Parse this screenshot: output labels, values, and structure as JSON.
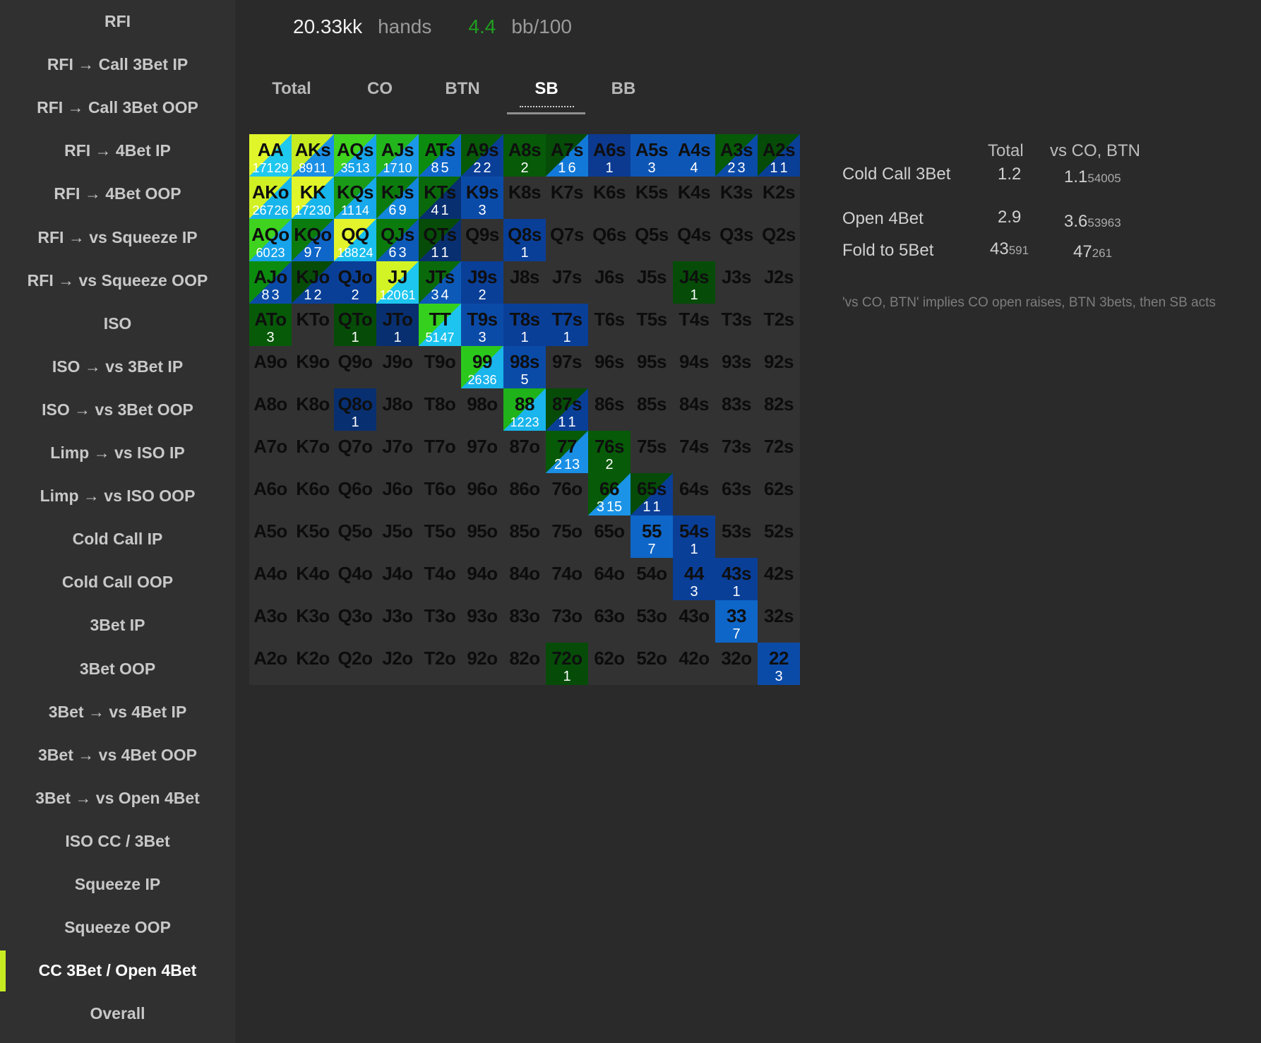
{
  "sidebar": {
    "items": [
      "RFI",
      "RFI → Call 3Bet IP",
      "RFI → Call 3Bet OOP",
      "RFI → 4Bet IP",
      "RFI → 4Bet OOP",
      "RFI → vs Squeeze IP",
      "RFI → vs Squeeze OOP",
      "ISO",
      "ISO → vs 3Bet IP",
      "ISO → vs 3Bet OOP",
      "Limp → vs ISO IP",
      "Limp → vs ISO OOP",
      "Cold Call IP",
      "Cold Call OOP",
      "3Bet IP",
      "3Bet OOP",
      "3Bet → vs 4Bet IP",
      "3Bet → vs 4Bet OOP",
      "3Bet → vs Open 4Bet",
      "ISO CC / 3Bet",
      "Squeeze IP",
      "Squeeze OOP",
      "CC 3Bet / Open 4Bet",
      "Overall"
    ],
    "active_index": 22,
    "accent_color": "#c6ec21"
  },
  "stats": {
    "hands_value": "20.33kk",
    "hands_label": "hands",
    "winrate_value": "4.4",
    "winrate_label": "bb/100",
    "winrate_color": "#1fa01f"
  },
  "tabs": {
    "items": [
      "Total",
      "CO",
      "BTN",
      "SB",
      "BB"
    ],
    "active_index": 3
  },
  "grid": {
    "cells": [
      [
        "AA",
        "171",
        "29",
        "#e0f52a",
        "#1fc8ee"
      ],
      [
        "AKs",
        "89",
        "11",
        "#c6ec21",
        "#1a8fe6"
      ],
      [
        "AQs",
        "35",
        "13",
        "#41d41f",
        "#17a3ea"
      ],
      [
        "AJs",
        "17",
        "10",
        "#22b51c",
        "#1c98e8"
      ],
      [
        "ATs",
        "8",
        "5",
        "#0c8c0f",
        "#0e66c8"
      ],
      [
        "A9s",
        "2",
        "2",
        "#075a08",
        "#0a3f98"
      ],
      [
        "A8s",
        "2",
        "",
        "#075a08",
        ""
      ],
      [
        "A7s",
        "1",
        "6",
        "#064c08",
        "#1379d9"
      ],
      [
        "A6s",
        "1",
        "",
        "#0b3a90",
        ""
      ],
      [
        "A5s",
        "3",
        "",
        "#0e56b6",
        ""
      ],
      [
        "A4s",
        "4",
        "",
        "#0e56b6",
        ""
      ],
      [
        "A3s",
        "2",
        "3",
        "#075a08",
        "#0b4ba8"
      ],
      [
        "A2s",
        "1",
        "1",
        "#064c08",
        "#0a3f98"
      ],
      [
        "AKo",
        "267",
        "26",
        "#d0f024",
        "#16b5ec"
      ],
      [
        "KK",
        "172",
        "30",
        "#e0f52a",
        "#16b5ec"
      ],
      [
        "KQs",
        "11",
        "14",
        "#1a9a17",
        "#17a9eb"
      ],
      [
        "KJs",
        "6",
        "9",
        "#0c7b0e",
        "#1386de"
      ],
      [
        "KTs",
        "4",
        "1",
        "#0a6a0b",
        "#082f70"
      ],
      [
        "K9s",
        "3",
        "",
        "#0b4ba8",
        ""
      ],
      [
        "K8s",
        "",
        "",
        "",
        ""
      ],
      [
        "K7s",
        "",
        "",
        "",
        ""
      ],
      [
        "K6s",
        "",
        "",
        "",
        ""
      ],
      [
        "K5s",
        "",
        "",
        "",
        ""
      ],
      [
        "K4s",
        "",
        "",
        "",
        ""
      ],
      [
        "K3s",
        "",
        "",
        "",
        ""
      ],
      [
        "K2s",
        "",
        "",
        "",
        ""
      ],
      [
        "AQo",
        "60",
        "23",
        "#3fd21f",
        "#17a3ea"
      ],
      [
        "KQo",
        "9",
        "7",
        "#0c7b0e",
        "#0e66c8"
      ],
      [
        "QQ",
        "188",
        "24",
        "#e4f42c",
        "#19bdee"
      ],
      [
        "QJs",
        "6",
        "3",
        "#0c7b0e",
        "#0d59b8"
      ],
      [
        "QTs",
        "1",
        "1",
        "#064c08",
        "#082f70"
      ],
      [
        "Q9s",
        "",
        "",
        "",
        ""
      ],
      [
        "Q8s",
        "1",
        "",
        "#0a3f98",
        ""
      ],
      [
        "Q7s",
        "",
        "",
        "",
        ""
      ],
      [
        "Q6s",
        "",
        "",
        "",
        ""
      ],
      [
        "Q5s",
        "",
        "",
        "",
        ""
      ],
      [
        "Q4s",
        "",
        "",
        "",
        ""
      ],
      [
        "Q3s",
        "",
        "",
        "",
        ""
      ],
      [
        "Q2s",
        "",
        "",
        "",
        ""
      ],
      [
        "AJo",
        "8",
        "3",
        "#0c8c0f",
        "#0b4ba8"
      ],
      [
        "KJo",
        "1",
        "2",
        "#064c08",
        "#0a3f98"
      ],
      [
        "QJo",
        "2",
        "",
        "#0a3f98",
        ""
      ],
      [
        "JJ",
        "120",
        "61",
        "#d2f424",
        "#1dc6ef"
      ],
      [
        "JTs",
        "3",
        "4",
        "#0a6a0b",
        "#0d59b8"
      ],
      [
        "J9s",
        "2",
        "",
        "#0a3f98",
        ""
      ],
      [
        "J8s",
        "",
        "",
        "",
        ""
      ],
      [
        "J7s",
        "",
        "",
        "",
        ""
      ],
      [
        "J6s",
        "",
        "",
        "",
        ""
      ],
      [
        "J5s",
        "",
        "",
        "",
        ""
      ],
      [
        "J4s",
        "1",
        "",
        "#064c08",
        ""
      ],
      [
        "J3s",
        "",
        "",
        "",
        ""
      ],
      [
        "J2s",
        "",
        "",
        "",
        ""
      ],
      [
        "ATo",
        "3",
        "",
        "#075a08",
        ""
      ],
      [
        "KTo",
        "",
        "",
        "",
        ""
      ],
      [
        "QTo",
        "1",
        "",
        "#064c08",
        ""
      ],
      [
        "JTo",
        "1",
        "",
        "#082f70",
        ""
      ],
      [
        "TT",
        "51",
        "47",
        "#35d01e",
        "#1cc4ef"
      ],
      [
        "T9s",
        "3",
        "",
        "#0b4ba8",
        ""
      ],
      [
        "T8s",
        "1",
        "",
        "#0a3f98",
        ""
      ],
      [
        "T7s",
        "1",
        "",
        "#0a3f98",
        ""
      ],
      [
        "T6s",
        "",
        "",
        "",
        ""
      ],
      [
        "T5s",
        "",
        "",
        "",
        ""
      ],
      [
        "T4s",
        "",
        "",
        "",
        ""
      ],
      [
        "T3s",
        "",
        "",
        "",
        ""
      ],
      [
        "T2s",
        "",
        "",
        "",
        ""
      ],
      [
        "A9o",
        "",
        "",
        "",
        ""
      ],
      [
        "K9o",
        "",
        "",
        "",
        ""
      ],
      [
        "Q9o",
        "",
        "",
        "",
        ""
      ],
      [
        "J9o",
        "",
        "",
        "",
        ""
      ],
      [
        "T9o",
        "",
        "",
        "",
        ""
      ],
      [
        "99",
        "26",
        "36",
        "#2bc81c",
        "#19b5ec"
      ],
      [
        "98s",
        "5",
        "",
        "#0b4ba8",
        ""
      ],
      [
        "97s",
        "",
        "",
        "",
        ""
      ],
      [
        "96s",
        "",
        "",
        "",
        ""
      ],
      [
        "95s",
        "",
        "",
        "",
        ""
      ],
      [
        "94s",
        "",
        "",
        "",
        ""
      ],
      [
        "93s",
        "",
        "",
        "",
        ""
      ],
      [
        "92s",
        "",
        "",
        "",
        ""
      ],
      [
        "A8o",
        "",
        "",
        "",
        ""
      ],
      [
        "K8o",
        "",
        "",
        "",
        ""
      ],
      [
        "Q8o",
        "1",
        "",
        "#082f70",
        ""
      ],
      [
        "J8o",
        "",
        "",
        "",
        ""
      ],
      [
        "T8o",
        "",
        "",
        "",
        ""
      ],
      [
        "98o",
        "",
        "",
        "",
        ""
      ],
      [
        "88",
        "12",
        "23",
        "#1fb21a",
        "#19b5ec"
      ],
      [
        "87s",
        "1",
        "1",
        "#064c08",
        "#0a3f98"
      ],
      [
        "86s",
        "",
        "",
        "",
        ""
      ],
      [
        "85s",
        "",
        "",
        "",
        ""
      ],
      [
        "84s",
        "",
        "",
        "",
        ""
      ],
      [
        "83s",
        "",
        "",
        "",
        ""
      ],
      [
        "82s",
        "",
        "",
        "",
        ""
      ],
      [
        "A7o",
        "",
        "",
        "",
        ""
      ],
      [
        "K7o",
        "",
        "",
        "",
        ""
      ],
      [
        "Q7o",
        "",
        "",
        "",
        ""
      ],
      [
        "J7o",
        "",
        "",
        "",
        ""
      ],
      [
        "T7o",
        "",
        "",
        "",
        ""
      ],
      [
        "97o",
        "",
        "",
        "",
        ""
      ],
      [
        "87o",
        "",
        "",
        "",
        ""
      ],
      [
        "77",
        "2",
        "13",
        "#075a08",
        "#1a8fe6"
      ],
      [
        "76s",
        "2",
        "",
        "#075a08",
        ""
      ],
      [
        "75s",
        "",
        "",
        "",
        ""
      ],
      [
        "74s",
        "",
        "",
        "",
        ""
      ],
      [
        "73s",
        "",
        "",
        "",
        ""
      ],
      [
        "72s",
        "",
        "",
        "",
        ""
      ],
      [
        "A6o",
        "",
        "",
        "",
        ""
      ],
      [
        "K6o",
        "",
        "",
        "",
        ""
      ],
      [
        "Q6o",
        "",
        "",
        "",
        ""
      ],
      [
        "J6o",
        "",
        "",
        "",
        ""
      ],
      [
        "T6o",
        "",
        "",
        "",
        ""
      ],
      [
        "96o",
        "",
        "",
        "",
        ""
      ],
      [
        "86o",
        "",
        "",
        "",
        ""
      ],
      [
        "76o",
        "",
        "",
        "",
        ""
      ],
      [
        "66",
        "3",
        "15",
        "#075a08",
        "#1b93e6"
      ],
      [
        "65s",
        "1",
        "1",
        "#064c08",
        "#0a3f98"
      ],
      [
        "64s",
        "",
        "",
        "",
        ""
      ],
      [
        "63s",
        "",
        "",
        "",
        ""
      ],
      [
        "62s",
        "",
        "",
        "",
        ""
      ],
      [
        "A5o",
        "",
        "",
        "",
        ""
      ],
      [
        "K5o",
        "",
        "",
        "",
        ""
      ],
      [
        "Q5o",
        "",
        "",
        "",
        ""
      ],
      [
        "J5o",
        "",
        "",
        "",
        ""
      ],
      [
        "T5o",
        "",
        "",
        "",
        ""
      ],
      [
        "95o",
        "",
        "",
        "",
        ""
      ],
      [
        "85o",
        "",
        "",
        "",
        ""
      ],
      [
        "75o",
        "",
        "",
        "",
        ""
      ],
      [
        "65o",
        "",
        "",
        "",
        ""
      ],
      [
        "55",
        "7",
        "",
        "#0e66c8",
        ""
      ],
      [
        "54s",
        "1",
        "",
        "#0a3f98",
        ""
      ],
      [
        "53s",
        "",
        "",
        "",
        ""
      ],
      [
        "52s",
        "",
        "",
        "",
        ""
      ],
      [
        "A4o",
        "",
        "",
        "",
        ""
      ],
      [
        "K4o",
        "",
        "",
        "",
        ""
      ],
      [
        "Q4o",
        "",
        "",
        "",
        ""
      ],
      [
        "J4o",
        "",
        "",
        "",
        ""
      ],
      [
        "T4o",
        "",
        "",
        "",
        ""
      ],
      [
        "94o",
        "",
        "",
        "",
        ""
      ],
      [
        "84o",
        "",
        "",
        "",
        ""
      ],
      [
        "74o",
        "",
        "",
        "",
        ""
      ],
      [
        "64o",
        "",
        "",
        "",
        ""
      ],
      [
        "54o",
        "",
        "",
        "",
        ""
      ],
      [
        "44",
        "3",
        "",
        "#0a3f98",
        ""
      ],
      [
        "43s",
        "1",
        "",
        "#0a3f98",
        ""
      ],
      [
        "42s",
        "",
        "",
        "",
        ""
      ],
      [
        "A3o",
        "",
        "",
        "",
        ""
      ],
      [
        "K3o",
        "",
        "",
        "",
        ""
      ],
      [
        "Q3o",
        "",
        "",
        "",
        ""
      ],
      [
        "J3o",
        "",
        "",
        "",
        ""
      ],
      [
        "T3o",
        "",
        "",
        "",
        ""
      ],
      [
        "93o",
        "",
        "",
        "",
        ""
      ],
      [
        "83o",
        "",
        "",
        "",
        ""
      ],
      [
        "73o",
        "",
        "",
        "",
        ""
      ],
      [
        "63o",
        "",
        "",
        "",
        ""
      ],
      [
        "53o",
        "",
        "",
        "",
        ""
      ],
      [
        "43o",
        "",
        "",
        "",
        ""
      ],
      [
        "33",
        "7",
        "",
        "#0e66c8",
        ""
      ],
      [
        "32s",
        "",
        "",
        "",
        ""
      ],
      [
        "A2o",
        "",
        "",
        "",
        ""
      ],
      [
        "K2o",
        "",
        "",
        "",
        ""
      ],
      [
        "Q2o",
        "",
        "",
        "",
        ""
      ],
      [
        "J2o",
        "",
        "",
        "",
        ""
      ],
      [
        "T2o",
        "",
        "",
        "",
        ""
      ],
      [
        "92o",
        "",
        "",
        "",
        ""
      ],
      [
        "82o",
        "",
        "",
        "",
        ""
      ],
      [
        "72o",
        "1",
        "",
        "#064c08",
        ""
      ],
      [
        "62o",
        "",
        "",
        "",
        ""
      ],
      [
        "52o",
        "",
        "",
        "",
        ""
      ],
      [
        "42o",
        "",
        "",
        "",
        ""
      ],
      [
        "32o",
        "",
        "",
        "",
        ""
      ],
      [
        "22",
        "3",
        "",
        "#0b4ba8",
        ""
      ]
    ]
  },
  "summary": {
    "col_total": "Total",
    "col_vs": "vs CO, BTN",
    "rows": [
      {
        "label": "Cold Call 3Bet",
        "total": "1.2",
        "total_small": "",
        "vs": "1.1",
        "vs_small": "54005"
      },
      {
        "label": "Open 4Bet",
        "total": "2.9",
        "total_small": "",
        "vs": "3.6",
        "vs_small": "53963"
      },
      {
        "label": "Fold to 5Bet",
        "total": "43",
        "total_small": "591",
        "vs": "47",
        "vs_small": "261"
      }
    ],
    "note": "'vs CO, BTN' implies CO open raises, BTN 3bets, then SB acts"
  }
}
